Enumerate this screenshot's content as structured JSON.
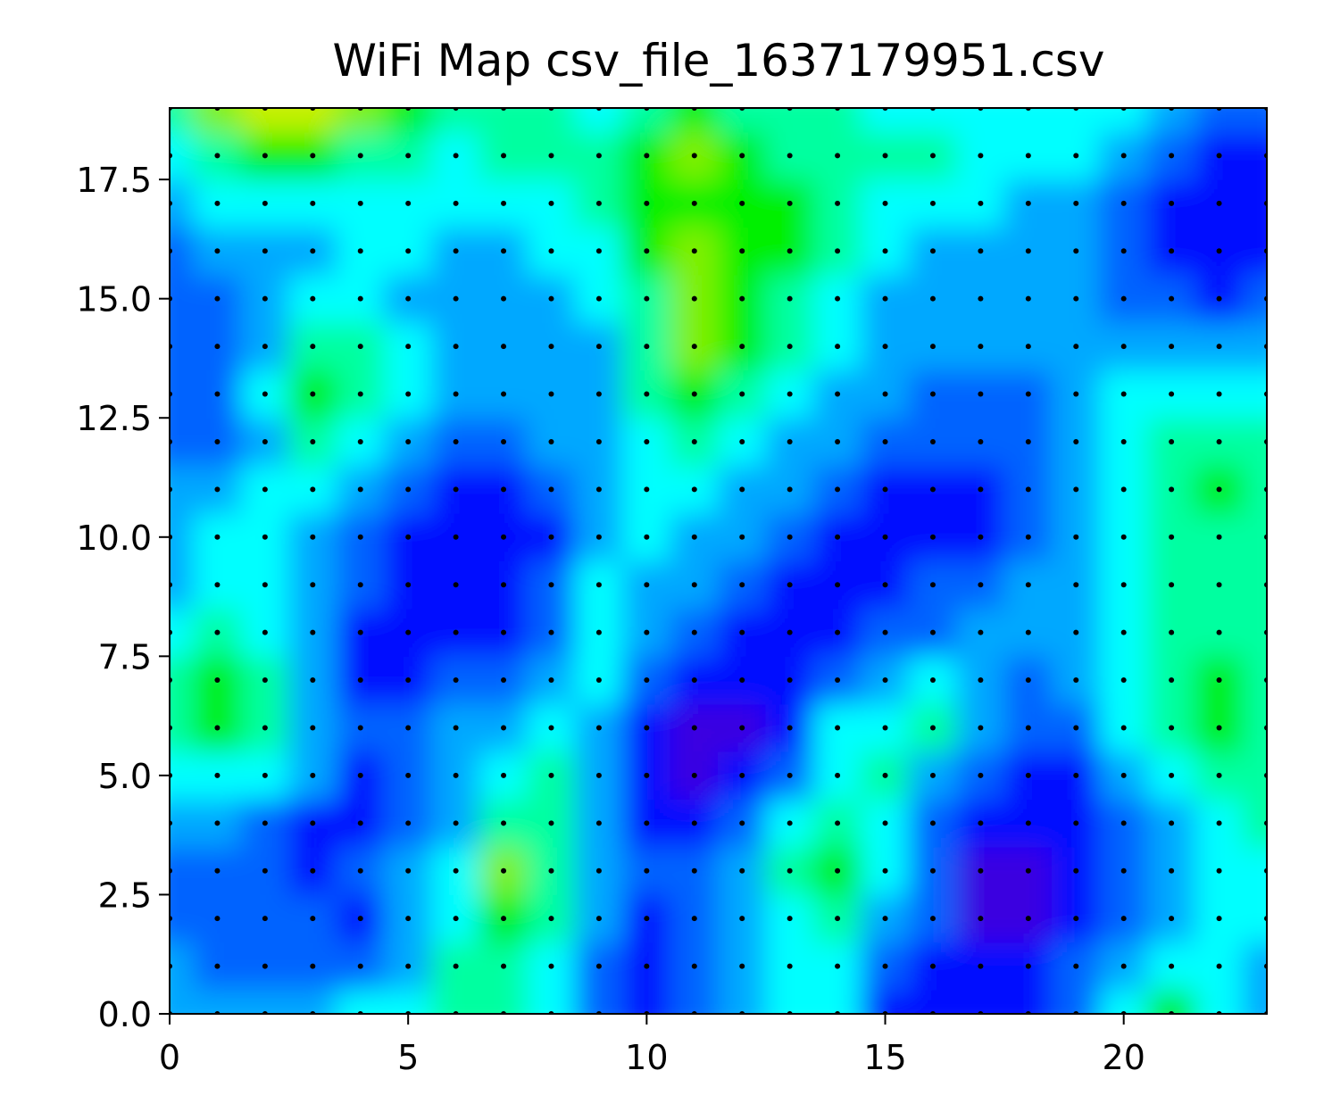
{
  "chart_data": {
    "type": "contour",
    "title": "WiFi Map csv_file_1637179951.csv",
    "x": [
      0,
      1,
      2,
      3,
      4,
      5,
      6,
      7,
      8,
      9,
      10,
      11,
      12,
      13,
      14,
      15,
      16,
      17,
      18,
      19,
      20,
      21,
      22,
      23
    ],
    "y": [
      0,
      1,
      2,
      3,
      4,
      5,
      6,
      7,
      8,
      9,
      10,
      11,
      12,
      13,
      14,
      15,
      16,
      17,
      18,
      19
    ],
    "z": [
      [
        3,
        3,
        3,
        3,
        4,
        4,
        5,
        5,
        4,
        2,
        1,
        2,
        3,
        4,
        4,
        1,
        1,
        1,
        1,
        2,
        4,
        6,
        4,
        3
      ],
      [
        3,
        2,
        2,
        2,
        2,
        3,
        5,
        5,
        4,
        2,
        1,
        2,
        3,
        4,
        4,
        2,
        1,
        1,
        1,
        2,
        3,
        4,
        4,
        3
      ],
      [
        2,
        2,
        2,
        2,
        1,
        3,
        4,
        6,
        5,
        3,
        1,
        2,
        3,
        4,
        5,
        3,
        2,
        0,
        0,
        1,
        2,
        3,
        4,
        4
      ],
      [
        2,
        2,
        2,
        1,
        2,
        3,
        4,
        7,
        5,
        3,
        2,
        2,
        3,
        5,
        6,
        4,
        2,
        0,
        0,
        1,
        2,
        3,
        4,
        4
      ],
      [
        3,
        3,
        2,
        1,
        1,
        2,
        3,
        5,
        5,
        3,
        1,
        1,
        2,
        4,
        5,
        4,
        2,
        1,
        1,
        1,
        2,
        3,
        4,
        5
      ],
      [
        4,
        4,
        4,
        3,
        1,
        2,
        3,
        4,
        5,
        3,
        1,
        0,
        1,
        2,
        4,
        5,
        3,
        2,
        1,
        1,
        3,
        4,
        5,
        5
      ],
      [
        5,
        6,
        5,
        3,
        2,
        2,
        3,
        3,
        4,
        3,
        1,
        0,
        0,
        1,
        4,
        4,
        5,
        3,
        2,
        2,
        4,
        5,
        6,
        5
      ],
      [
        5,
        6,
        5,
        3,
        1,
        1,
        2,
        2,
        3,
        4,
        2,
        1,
        1,
        1,
        2,
        3,
        4,
        3,
        2,
        3,
        4,
        5,
        6,
        5
      ],
      [
        4,
        5,
        4,
        3,
        1,
        1,
        1,
        1,
        2,
        4,
        3,
        2,
        1,
        1,
        1,
        2,
        2,
        3,
        3,
        3,
        4,
        5,
        5,
        5
      ],
      [
        3,
        4,
        4,
        3,
        2,
        1,
        1,
        1,
        2,
        4,
        3,
        3,
        2,
        1,
        1,
        1,
        2,
        2,
        3,
        3,
        4,
        5,
        5,
        5
      ],
      [
        3,
        4,
        4,
        3,
        2,
        1,
        1,
        1,
        1,
        3,
        4,
        3,
        3,
        2,
        1,
        1,
        1,
        1,
        2,
        3,
        4,
        5,
        5,
        5
      ],
      [
        3,
        3,
        4,
        4,
        3,
        2,
        1,
        1,
        2,
        3,
        4,
        4,
        3,
        3,
        2,
        1,
        1,
        1,
        2,
        3,
        4,
        5,
        6,
        5
      ],
      [
        2,
        2,
        3,
        5,
        4,
        3,
        2,
        2,
        3,
        3,
        4,
        5,
        4,
        3,
        3,
        2,
        2,
        2,
        2,
        3,
        4,
        5,
        5,
        5
      ],
      [
        2,
        2,
        4,
        6,
        5,
        4,
        3,
        3,
        3,
        3,
        5,
        6,
        5,
        4,
        3,
        3,
        2,
        2,
        2,
        3,
        4,
        4,
        4,
        4
      ],
      [
        2,
        2,
        3,
        5,
        5,
        4,
        3,
        3,
        3,
        3,
        5,
        7,
        6,
        5,
        4,
        3,
        3,
        3,
        3,
        3,
        3,
        3,
        3,
        3
      ],
      [
        2,
        2,
        3,
        4,
        4,
        3,
        3,
        3,
        3,
        4,
        5,
        7,
        6,
        5,
        4,
        3,
        3,
        3,
        3,
        3,
        2,
        2,
        1,
        2
      ],
      [
        2,
        3,
        3,
        3,
        4,
        4,
        3,
        3,
        4,
        4,
        6,
        7,
        6,
        6,
        5,
        4,
        3,
        3,
        3,
        3,
        2,
        1,
        1,
        1
      ],
      [
        3,
        4,
        4,
        4,
        4,
        4,
        4,
        4,
        4,
        5,
        6,
        6,
        6,
        6,
        5,
        4,
        4,
        4,
        3,
        3,
        2,
        1,
        1,
        1
      ],
      [
        4,
        5,
        6,
        6,
        5,
        5,
        4,
        5,
        5,
        5,
        6,
        7,
        6,
        5,
        5,
        5,
        5,
        4,
        4,
        4,
        3,
        2,
        1,
        1
      ],
      [
        5,
        7,
        8,
        8,
        7,
        6,
        5,
        5,
        5,
        4,
        5,
        6,
        5,
        5,
        5,
        4,
        4,
        4,
        4,
        4,
        4,
        3,
        2,
        2
      ]
    ],
    "colors": [
      "#3a00e0",
      "#0010ff",
      "#0064ff",
      "#00a8ff",
      "#00ffff",
      "#00ffa0",
      "#00f000",
      "#80f000",
      "#c8f000"
    ],
    "xlim": [
      0,
      23
    ],
    "ylim": [
      0,
      19
    ],
    "xticks": [
      0,
      5,
      10,
      15,
      20
    ],
    "yticks": [
      {
        "value": 0,
        "label": "0.0"
      },
      {
        "value": 2.5,
        "label": "2.5"
      },
      {
        "value": 5,
        "label": "5.0"
      },
      {
        "value": 7.5,
        "label": "7.5"
      },
      {
        "value": 10,
        "label": "10.0"
      },
      {
        "value": 12.5,
        "label": "12.5"
      },
      {
        "value": 15,
        "label": "15.0"
      },
      {
        "value": 17.5,
        "label": "17.5"
      }
    ]
  }
}
